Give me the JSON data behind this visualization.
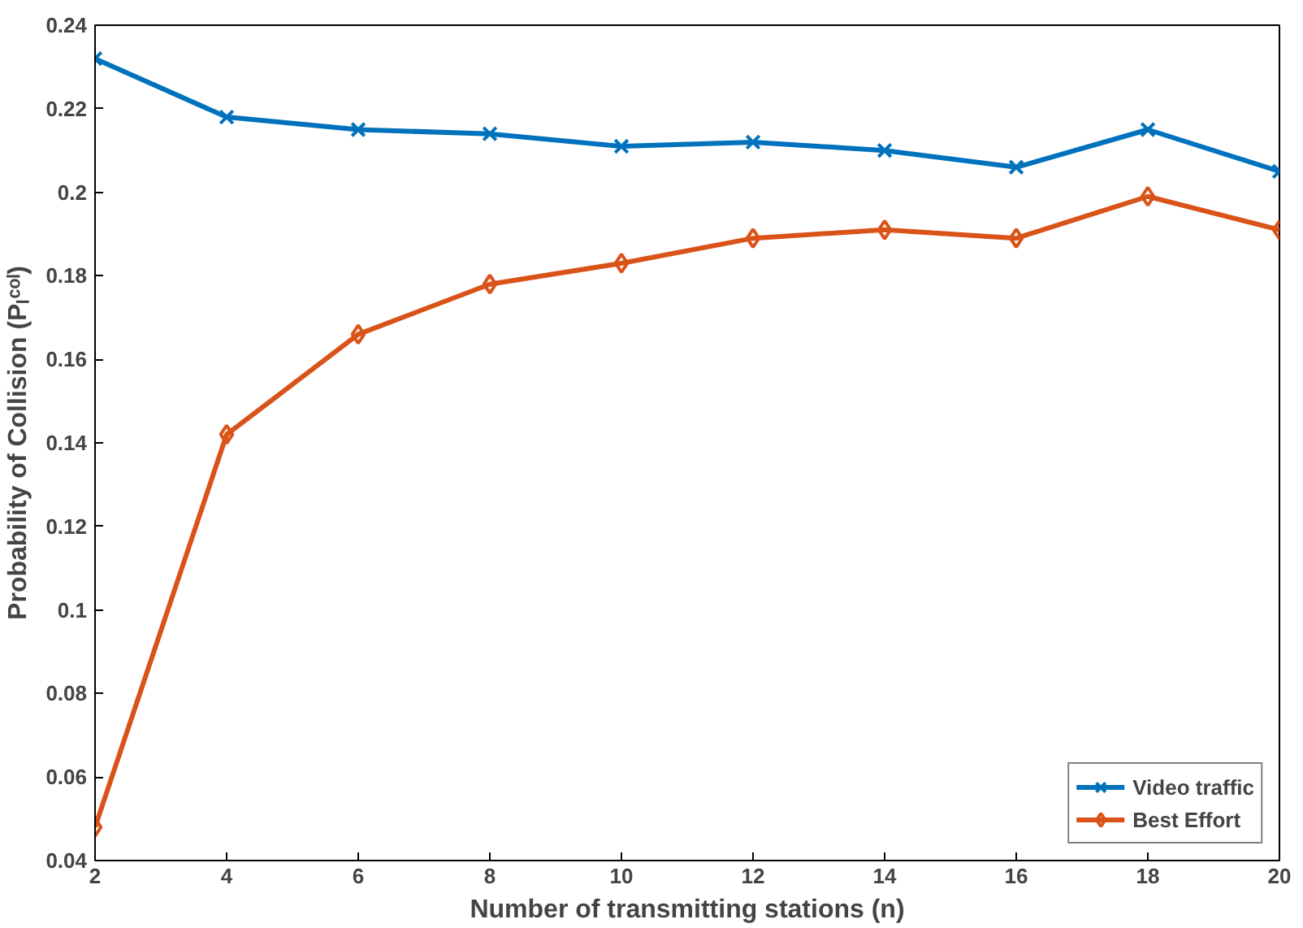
{
  "chart_data": {
    "type": "line",
    "xlabel": "Number of transmitting stations (n)",
    "ylabel": "Probability of Collision (Pₗᶜᵒˡ)",
    "x": [
      2,
      4,
      6,
      8,
      10,
      12,
      14,
      16,
      18,
      20
    ],
    "series": [
      {
        "name": "Video traffic",
        "color": "#0072bd",
        "marker": "cross",
        "values": [
          0.232,
          0.218,
          0.215,
          0.214,
          0.211,
          0.212,
          0.21,
          0.206,
          0.215,
          0.205
        ]
      },
      {
        "name": "Best Effort",
        "color": "#d95319",
        "marker": "diamond",
        "values": [
          0.048,
          0.142,
          0.166,
          0.178,
          0.183,
          0.189,
          0.191,
          0.189,
          0.199,
          0.191
        ]
      }
    ],
    "xlim": [
      2,
      20
    ],
    "xticks": [
      2,
      4,
      6,
      8,
      10,
      12,
      14,
      16,
      18,
      20
    ],
    "ylim": [
      0.04,
      0.24
    ],
    "yticks": [
      0.04,
      0.06,
      0.08,
      0.1,
      0.12,
      0.14,
      0.16,
      0.18,
      0.2,
      0.22,
      0.24
    ],
    "grid": false,
    "legend": "bottom right",
    "line_style": "solid"
  }
}
